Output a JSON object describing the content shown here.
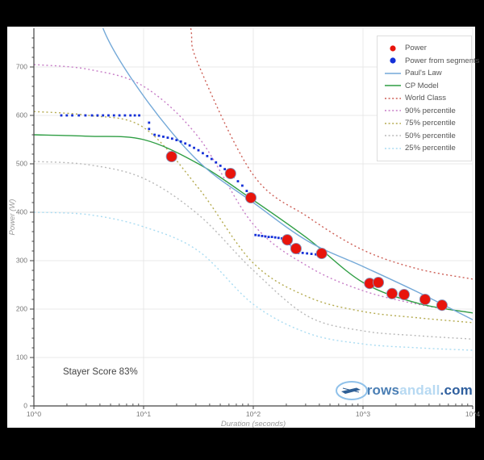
{
  "frame": {
    "background": "#000000",
    "panel_background": "#ffffff"
  },
  "legend": {
    "items": [
      {
        "label": "Power",
        "marker": "dot",
        "color": "#e8140c"
      },
      {
        "label": "Power from segments",
        "marker": "dot",
        "color": "#1430d8"
      },
      {
        "label": "Paul's Law",
        "marker": "line",
        "color": "#74a9d8"
      },
      {
        "label": "CP Model",
        "marker": "line",
        "color": "#2f9e44"
      },
      {
        "label": "World Class",
        "marker": "dotted-line",
        "color": "#cd5f56"
      },
      {
        "label": "90% percentile",
        "marker": "dotted-line",
        "color": "#c77dc7"
      },
      {
        "label": "75% percentile",
        "marker": "dotted-line",
        "color": "#b5ab50"
      },
      {
        "label": "50% percentile",
        "marker": "dotted-line",
        "color": "#b9b9b9"
      },
      {
        "label": "25% percentile",
        "marker": "dotted-line",
        "color": "#aadcf2"
      }
    ]
  },
  "logo": {
    "prefix": "rows",
    "middle": "andall",
    "suffix": ".com",
    "prefix_color": "#4a7eb4",
    "middle_color": "#b7d9f2",
    "suffix_color": "#2f5f9e",
    "icon_color": "#8fc1ea",
    "boat_color": "#2e5f96"
  },
  "chart_data": {
    "type": "scatter",
    "title": "",
    "xlabel": "Duration (seconds)",
    "ylabel": "Power (W)",
    "x_scale": "log10",
    "xlim_log": [
      0,
      4
    ],
    "ylim": [
      0,
      780
    ],
    "y_ticks": [
      0,
      100,
      200,
      300,
      400,
      500,
      600,
      700
    ],
    "x_ticks": [
      {
        "log": 0,
        "label": "10^0"
      },
      {
        "log": 1,
        "label": "10^1"
      },
      {
        "log": 2,
        "label": "10^2"
      },
      {
        "log": 3,
        "label": "10^3"
      },
      {
        "log": 4,
        "label": "10^4"
      }
    ],
    "grid": true,
    "legend_position": "top-right",
    "annotation": "Stayer Score 83%",
    "series": [
      {
        "name": "Power",
        "type": "scatter",
        "marker": "circle",
        "color": "#e8140c",
        "points_t_watts": [
          [
            18,
            515
          ],
          [
            62,
            480
          ],
          [
            95,
            430
          ],
          [
            204,
            343
          ],
          [
            245,
            325
          ],
          [
            420,
            315
          ],
          [
            1150,
            253
          ],
          [
            1380,
            255
          ],
          [
            1840,
            232
          ],
          [
            2370,
            230
          ],
          [
            3680,
            220
          ],
          [
            5250,
            208
          ]
        ]
      },
      {
        "name": "Power from segments",
        "type": "scatter",
        "marker": "square-small",
        "color": "#1430d8",
        "points_logt_watts": [
          [
            0.25,
            600
          ],
          [
            0.3,
            600
          ],
          [
            0.35,
            600
          ],
          [
            0.41,
            600
          ],
          [
            0.47,
            600
          ],
          [
            0.53,
            600
          ],
          [
            0.58,
            600
          ],
          [
            0.63,
            600
          ],
          [
            0.68,
            600
          ],
          [
            0.73,
            600
          ],
          [
            0.78,
            600
          ],
          [
            0.83,
            600
          ],
          [
            0.88,
            600
          ],
          [
            0.92,
            600
          ],
          [
            0.96,
            600
          ],
          [
            1.05,
            585
          ],
          [
            1.05,
            572
          ],
          [
            1.1,
            560
          ],
          [
            1.14,
            558
          ],
          [
            1.18,
            556
          ],
          [
            1.22,
            554
          ],
          [
            1.26,
            552
          ],
          [
            1.3,
            549
          ],
          [
            1.34,
            546
          ],
          [
            1.38,
            542
          ],
          [
            1.42,
            538
          ],
          [
            1.46,
            533
          ],
          [
            1.5,
            528
          ],
          [
            1.54,
            522
          ],
          [
            1.58,
            516
          ],
          [
            1.62,
            510
          ],
          [
            1.66,
            503
          ],
          [
            1.7,
            496
          ],
          [
            1.74,
            489
          ],
          [
            1.78,
            481
          ],
          [
            1.82,
            473
          ],
          [
            1.86,
            464
          ],
          [
            1.9,
            455
          ],
          [
            1.94,
            444
          ],
          [
            1.98,
            433
          ],
          [
            2.02,
            353
          ],
          [
            2.05,
            352
          ],
          [
            2.08,
            351
          ],
          [
            2.11,
            350
          ],
          [
            2.14,
            349
          ],
          [
            2.17,
            349
          ],
          [
            2.2,
            348
          ],
          [
            2.23,
            347
          ],
          [
            2.26,
            346
          ],
          [
            2.29,
            345
          ],
          [
            2.31,
            339
          ],
          [
            2.33,
            334
          ],
          [
            2.35,
            329
          ],
          [
            2.37,
            325
          ],
          [
            2.37,
            317
          ],
          [
            2.41,
            316
          ],
          [
            2.45,
            316
          ],
          [
            2.49,
            315
          ],
          [
            2.53,
            314
          ],
          [
            2.57,
            313
          ],
          [
            2.61,
            312
          ]
        ]
      },
      {
        "name": "Paul's Law",
        "type": "line",
        "style": "solid",
        "color": "#74a9d8",
        "points_logt_watts": [
          [
            0.55,
            900
          ],
          [
            0.63,
            780
          ],
          [
            1,
            640
          ],
          [
            1.5,
            505
          ],
          [
            2,
            420
          ],
          [
            2.5,
            340
          ],
          [
            3,
            288
          ],
          [
            3.5,
            235
          ],
          [
            4,
            178
          ]
        ]
      },
      {
        "name": "CP Model",
        "type": "line",
        "style": "solid",
        "color": "#2f9e44",
        "points_logt_watts": [
          [
            0,
            560
          ],
          [
            0.5,
            557
          ],
          [
            1,
            550
          ],
          [
            1.5,
            500
          ],
          [
            2,
            425
          ],
          [
            2.5,
            345
          ],
          [
            3,
            255
          ],
          [
            3.5,
            212
          ],
          [
            4,
            192
          ]
        ]
      },
      {
        "name": "World Class",
        "type": "line",
        "style": "dotted",
        "color": "#cd5f56",
        "points_logt_watts": [
          [
            1.35,
            900
          ],
          [
            1.43,
            780
          ],
          [
            1.5,
            705
          ],
          [
            2,
            477
          ],
          [
            2.5,
            390
          ],
          [
            3,
            322
          ],
          [
            3.5,
            283
          ],
          [
            4,
            262
          ]
        ]
      },
      {
        "name": "90% percentile",
        "type": "line",
        "style": "dotted",
        "color": "#c77dc7",
        "points_logt_watts": [
          [
            0,
            705
          ],
          [
            0.5,
            695
          ],
          [
            1,
            660
          ],
          [
            1.5,
            555
          ],
          [
            2,
            375
          ],
          [
            2.5,
            288
          ],
          [
            3,
            238
          ],
          [
            3.5,
            210
          ],
          [
            4,
            192
          ]
        ]
      },
      {
        "name": "75% percentile",
        "type": "line",
        "style": "dotted",
        "color": "#b5ab50",
        "points_logt_watts": [
          [
            0,
            608
          ],
          [
            0.5,
            600
          ],
          [
            1,
            575
          ],
          [
            1.5,
            450
          ],
          [
            2,
            295
          ],
          [
            2.5,
            225
          ],
          [
            3,
            195
          ],
          [
            3.5,
            182
          ],
          [
            4,
            172
          ]
        ]
      },
      {
        "name": "50% percentile",
        "type": "line",
        "style": "dotted",
        "color": "#b9b9b9",
        "points_logt_watts": [
          [
            0,
            505
          ],
          [
            0.5,
            498
          ],
          [
            1,
            470
          ],
          [
            1.5,
            395
          ],
          [
            2,
            280
          ],
          [
            2.5,
            185
          ],
          [
            3,
            155
          ],
          [
            3.5,
            145
          ],
          [
            4,
            138
          ]
        ]
      },
      {
        "name": "25% percentile",
        "type": "line",
        "style": "dotted",
        "color": "#aadcf2",
        "points_logt_watts": [
          [
            0,
            400
          ],
          [
            0.5,
            395
          ],
          [
            1,
            370
          ],
          [
            1.5,
            320
          ],
          [
            2,
            210
          ],
          [
            2.5,
            150
          ],
          [
            3,
            128
          ],
          [
            3.5,
            120
          ],
          [
            4,
            115
          ]
        ]
      }
    ]
  }
}
